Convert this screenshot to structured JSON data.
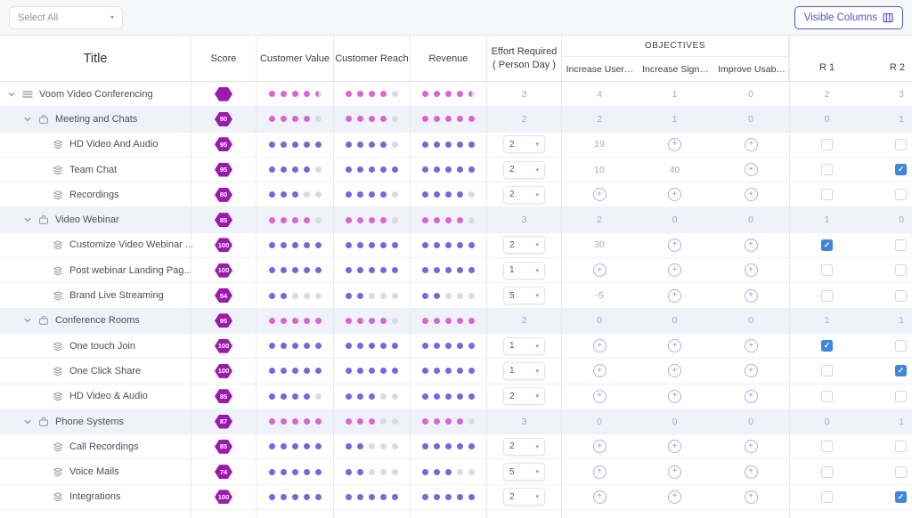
{
  "topbar": {
    "select_all_label": "Select All",
    "visible_columns_label": "Visible Columns"
  },
  "header": {
    "title": "Title",
    "score": "Score",
    "customer_value": "Customer Value",
    "customer_reach": "Customer Reach",
    "revenue": "Revenue",
    "effort_line1": "Effort Required",
    "effort_line2": "( Person Day )",
    "objectives_group": "OBJECTIVES",
    "objective_columns": [
      "Increase User…",
      "Increase Sign…",
      "Improve Usab…"
    ],
    "r1": "R 1",
    "r2": "R 2"
  },
  "colors": {
    "accent_purple": "#5a50c8",
    "badge_purple": "#9c18ae",
    "dot_pink": "#d964d2",
    "dot_purple": "#7568d8",
    "checkbox_blue": "#3d87da",
    "tinted_row": "#eff3f9"
  },
  "rows": [
    {
      "title": "Voom Video Conferencing",
      "level": 1,
      "icon": "list-icon",
      "chevron": true,
      "tint": false,
      "score": "",
      "dot_color": "pink",
      "customer_value": 4.5,
      "customer_reach": 4,
      "revenue": 4.5,
      "effort": {
        "control": "label",
        "value": "3"
      },
      "objectives": [
        "4",
        "1",
        "0"
      ],
      "r1": {
        "control": "label",
        "value": "2"
      },
      "r2": {
        "control": "label",
        "value": "3"
      }
    },
    {
      "title": "Meeting and Chats",
      "level": 2,
      "icon": "bag-icon",
      "chevron": true,
      "tint": true,
      "score": "90",
      "dot_color": "pink",
      "customer_value": 4,
      "customer_reach": 4,
      "revenue": 5,
      "effort": {
        "control": "label",
        "value": "2"
      },
      "objectives": [
        "2",
        "1",
        "0"
      ],
      "r1": {
        "control": "label",
        "value": "0"
      },
      "r2": {
        "control": "label",
        "value": "1"
      }
    },
    {
      "title": "HD Video And Audio",
      "level": 3,
      "icon": "layers-icon",
      "chevron": false,
      "tint": false,
      "score": "95",
      "dot_color": "purple",
      "customer_value": 5,
      "customer_reach": 4,
      "revenue": 5,
      "effort": {
        "control": "dropdown",
        "value": "2"
      },
      "objectives": [
        "19",
        "add",
        "add"
      ],
      "r1": {
        "control": "checkbox",
        "checked": false
      },
      "r2": {
        "control": "checkbox",
        "checked": false
      }
    },
    {
      "title": "Team Chat",
      "level": 3,
      "icon": "layers-icon",
      "chevron": false,
      "tint": false,
      "score": "95",
      "dot_color": "purple",
      "customer_value": 4,
      "customer_reach": 5,
      "revenue": 5,
      "effort": {
        "control": "dropdown",
        "value": "2"
      },
      "objectives": [
        "10",
        "40",
        "add"
      ],
      "r1": {
        "control": "checkbox",
        "checked": false
      },
      "r2": {
        "control": "checkbox",
        "checked": true
      }
    },
    {
      "title": "Recordings",
      "level": 3,
      "icon": "layers-icon",
      "chevron": false,
      "tint": false,
      "score": "80",
      "dot_color": "purple",
      "customer_value": 3,
      "customer_reach": 4,
      "revenue": 4,
      "effort": {
        "control": "dropdown",
        "value": "2"
      },
      "objectives": [
        "add",
        "add",
        "add"
      ],
      "r1": {
        "control": "checkbox",
        "checked": false
      },
      "r2": {
        "control": "checkbox",
        "checked": false
      }
    },
    {
      "title": "Video Webinar",
      "level": 2,
      "icon": "bag-icon",
      "chevron": true,
      "tint": true,
      "score": "85",
      "dot_color": "pink",
      "customer_value": 4,
      "customer_reach": 4,
      "revenue": 4,
      "effort": {
        "control": "label",
        "value": "3"
      },
      "objectives": [
        "2",
        "0",
        "0"
      ],
      "r1": {
        "control": "label",
        "value": "1"
      },
      "r2": {
        "control": "label",
        "value": "0"
      }
    },
    {
      "title": "Customize Video Webinar ...",
      "level": 3,
      "icon": "layers-icon",
      "chevron": false,
      "tint": false,
      "score": "100",
      "dot_color": "purple",
      "customer_value": 5,
      "customer_reach": 5,
      "revenue": 5,
      "effort": {
        "control": "dropdown",
        "value": "2"
      },
      "objectives": [
        "30",
        "add",
        "add"
      ],
      "r1": {
        "control": "checkbox",
        "checked": true
      },
      "r2": {
        "control": "checkbox",
        "checked": false
      }
    },
    {
      "title": "Post webinar Landing Pag...",
      "level": 3,
      "icon": "layers-icon",
      "chevron": false,
      "tint": false,
      "score": "100",
      "dot_color": "purple",
      "customer_value": 5,
      "customer_reach": 5,
      "revenue": 5,
      "effort": {
        "control": "dropdown",
        "value": "1"
      },
      "objectives": [
        "add",
        "add",
        "add"
      ],
      "r1": {
        "control": "checkbox",
        "checked": false
      },
      "r2": {
        "control": "checkbox",
        "checked": false
      }
    },
    {
      "title": "Brand Live Streaming",
      "level": 3,
      "icon": "layers-icon",
      "chevron": false,
      "tint": false,
      "score": "54",
      "dot_color": "purple",
      "customer_value": 2,
      "customer_reach": 2,
      "revenue": 2,
      "effort": {
        "control": "dropdown",
        "value": "5"
      },
      "objectives": [
        "-5",
        "add",
        "add"
      ],
      "r1": {
        "control": "checkbox",
        "checked": false
      },
      "r2": {
        "control": "checkbox",
        "checked": false
      }
    },
    {
      "title": "Conference Rooms",
      "level": 2,
      "icon": "bag-icon",
      "chevron": true,
      "tint": true,
      "score": "95",
      "dot_color": "pink",
      "customer_value": 5,
      "customer_reach": 4,
      "revenue": 5,
      "effort": {
        "control": "label",
        "value": "2"
      },
      "objectives": [
        "0",
        "0",
        "0"
      ],
      "r1": {
        "control": "label",
        "value": "1"
      },
      "r2": {
        "control": "label",
        "value": "1"
      }
    },
    {
      "title": "One touch Join",
      "level": 3,
      "icon": "layers-icon",
      "chevron": false,
      "tint": false,
      "score": "100",
      "dot_color": "purple",
      "customer_value": 5,
      "customer_reach": 5,
      "revenue": 5,
      "effort": {
        "control": "dropdown",
        "value": "1"
      },
      "objectives": [
        "add",
        "add",
        "add"
      ],
      "r1": {
        "control": "checkbox",
        "checked": true
      },
      "r2": {
        "control": "checkbox",
        "checked": false
      }
    },
    {
      "title": "One Click Share",
      "level": 3,
      "icon": "layers-icon",
      "chevron": false,
      "tint": false,
      "score": "100",
      "dot_color": "purple",
      "customer_value": 5,
      "customer_reach": 5,
      "revenue": 5,
      "effort": {
        "control": "dropdown",
        "value": "1"
      },
      "objectives": [
        "add",
        "add",
        "add"
      ],
      "r1": {
        "control": "checkbox",
        "checked": false
      },
      "r2": {
        "control": "checkbox",
        "checked": true
      }
    },
    {
      "title": "HD Video & Audio",
      "level": 3,
      "icon": "layers-icon",
      "chevron": false,
      "tint": false,
      "score": "85",
      "dot_color": "purple",
      "customer_value": 4,
      "customer_reach": 3,
      "revenue": 5,
      "effort": {
        "control": "dropdown",
        "value": "2"
      },
      "objectives": [
        "add",
        "add",
        "add"
      ],
      "r1": {
        "control": "checkbox",
        "checked": false
      },
      "r2": {
        "control": "checkbox",
        "checked": false
      }
    },
    {
      "title": "Phone Systems",
      "level": 2,
      "icon": "bag-icon",
      "chevron": true,
      "tint": true,
      "score": "87",
      "dot_color": "pink",
      "customer_value": 5,
      "customer_reach": 3,
      "revenue": 4,
      "effort": {
        "control": "label",
        "value": "3"
      },
      "objectives": [
        "0",
        "0",
        "0"
      ],
      "r1": {
        "control": "label",
        "value": "0"
      },
      "r2": {
        "control": "label",
        "value": "1"
      }
    },
    {
      "title": "Call Recordings",
      "level": 3,
      "icon": "layers-icon",
      "chevron": false,
      "tint": false,
      "score": "85",
      "dot_color": "purple",
      "customer_value": 5,
      "customer_reach": 2,
      "revenue": 5,
      "effort": {
        "control": "dropdown",
        "value": "2"
      },
      "objectives": [
        "add",
        "add",
        "add"
      ],
      "r1": {
        "control": "checkbox",
        "checked": false
      },
      "r2": {
        "control": "checkbox",
        "checked": false
      }
    },
    {
      "title": "Voice Mails",
      "level": 3,
      "icon": "layers-icon",
      "chevron": false,
      "tint": false,
      "score": "74",
      "dot_color": "purple",
      "customer_value": 5,
      "customer_reach": 2,
      "revenue": 3,
      "effort": {
        "control": "dropdown",
        "value": "5"
      },
      "objectives": [
        "add",
        "add",
        "add"
      ],
      "r1": {
        "control": "checkbox",
        "checked": false
      },
      "r2": {
        "control": "checkbox",
        "checked": false
      }
    },
    {
      "title": "Integrations",
      "level": 3,
      "icon": "layers-icon",
      "chevron": false,
      "tint": false,
      "score": "100",
      "dot_color": "purple",
      "customer_value": 5,
      "customer_reach": 5,
      "revenue": 5,
      "effort": {
        "control": "dropdown",
        "value": "2"
      },
      "objectives": [
        "add",
        "add",
        "add"
      ],
      "r1": {
        "control": "checkbox",
        "checked": false
      },
      "r2": {
        "control": "checkbox",
        "checked": true
      }
    }
  ]
}
